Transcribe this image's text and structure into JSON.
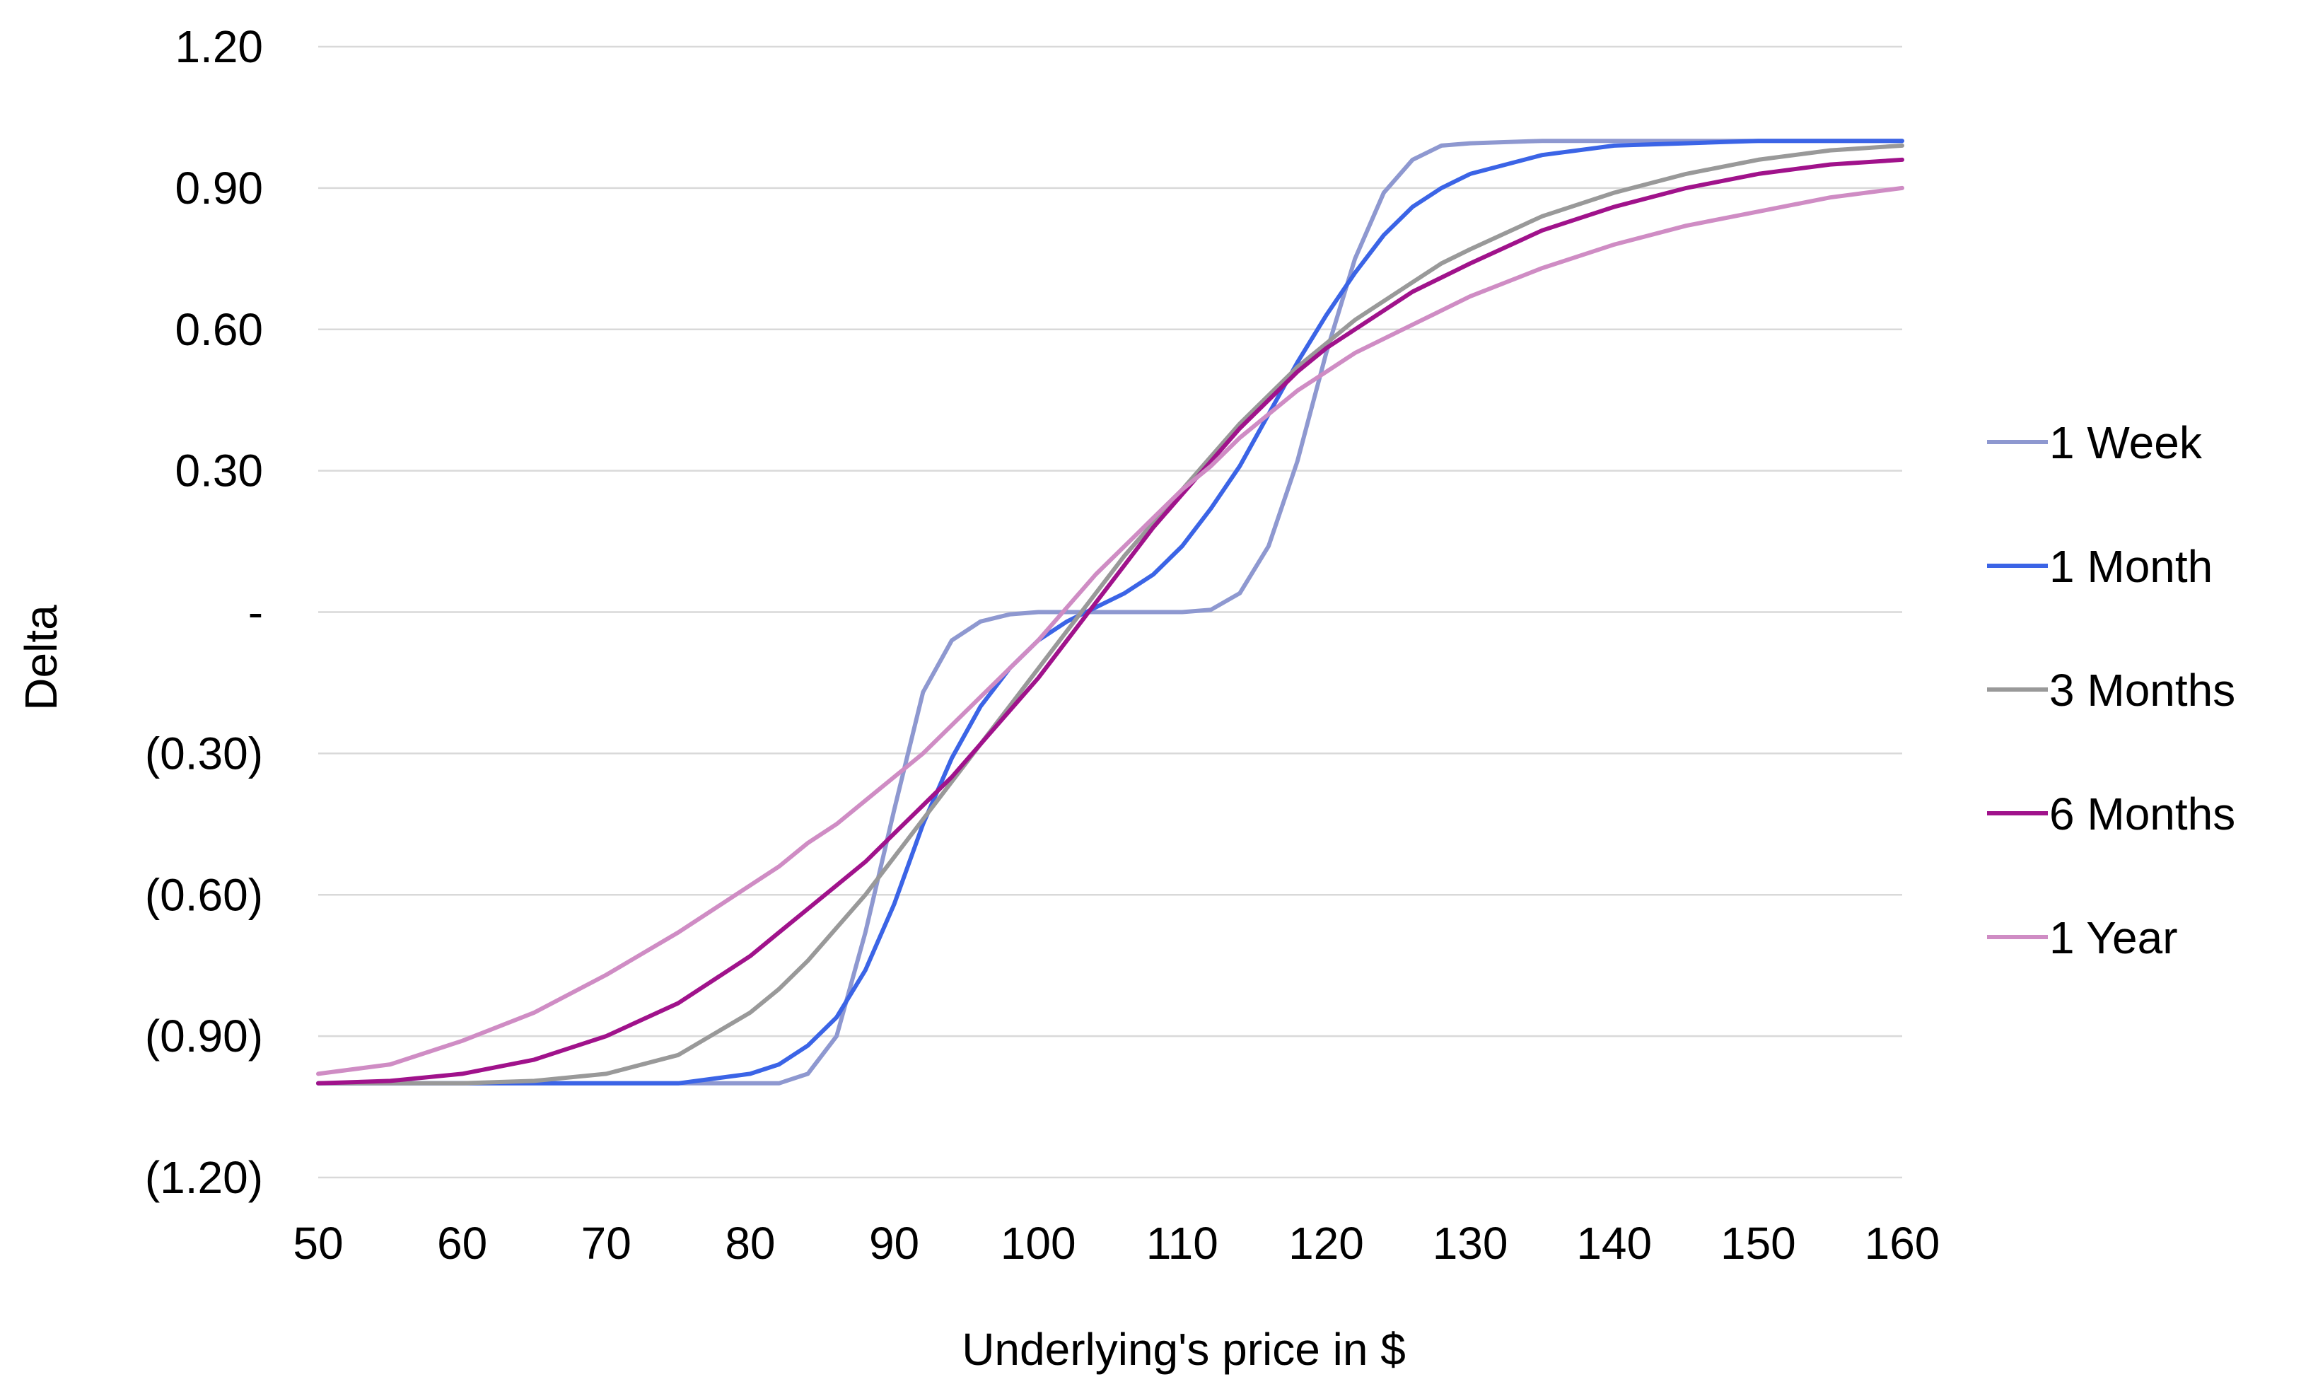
{
  "chart_data": {
    "type": "line",
    "title": "",
    "xlabel": "Underlying's price in $",
    "ylabel": "Delta",
    "xlim": [
      50,
      160
    ],
    "ylim": [
      -1.2,
      1.2
    ],
    "x_ticks": [
      {
        "value": 50,
        "label": "50"
      },
      {
        "value": 60,
        "label": "60"
      },
      {
        "value": 70,
        "label": "70"
      },
      {
        "value": 80,
        "label": "80"
      },
      {
        "value": 90,
        "label": "90"
      },
      {
        "value": 100,
        "label": "100"
      },
      {
        "value": 110,
        "label": "110"
      },
      {
        "value": 120,
        "label": "120"
      },
      {
        "value": 130,
        "label": "130"
      },
      {
        "value": 140,
        "label": "140"
      },
      {
        "value": 150,
        "label": "150"
      },
      {
        "value": 160,
        "label": "160"
      }
    ],
    "y_ticks": [
      {
        "value": 1.2,
        "label": "1.20"
      },
      {
        "value": 0.9,
        "label": "0.90"
      },
      {
        "value": 0.6,
        "label": "0.60"
      },
      {
        "value": 0.3,
        "label": "0.30"
      },
      {
        "value": 0,
        "label": "-"
      },
      {
        "value": -0.3,
        "label": "(0.30)"
      },
      {
        "value": -0.6,
        "label": "(0.60)"
      },
      {
        "value": -0.9,
        "label": "(0.90)"
      },
      {
        "value": -1.2,
        "label": "(1.20)"
      }
    ],
    "grid": true,
    "legend_position": "right",
    "x": [
      50,
      55,
      60,
      65,
      70,
      75,
      80,
      82,
      84,
      86,
      88,
      90,
      92,
      94,
      96,
      98,
      100,
      102,
      104,
      106,
      108,
      110,
      112,
      114,
      116,
      118,
      120,
      122,
      124,
      126,
      128,
      130,
      135,
      140,
      145,
      150,
      155,
      160
    ],
    "series": [
      {
        "name": "1 Week",
        "color": "#8e98d0",
        "values": [
          -1.0,
          -1.0,
          -1.0,
          -1.0,
          -1.0,
          -1.0,
          -1.0,
          -1.0,
          -0.98,
          -0.9,
          -0.68,
          -0.42,
          -0.17,
          -0.06,
          -0.02,
          -0.005,
          0.0,
          0.0,
          0.0,
          0.0,
          0.0,
          0.0,
          0.005,
          0.04,
          0.14,
          0.32,
          0.55,
          0.75,
          0.89,
          0.96,
          0.99,
          0.995,
          1.0,
          1.0,
          1.0,
          1.0,
          1.0,
          1.0
        ]
      },
      {
        "name": "1 Month",
        "color": "#3b64e6",
        "values": [
          -1.0,
          -1.0,
          -1.0,
          -1.0,
          -1.0,
          -1.0,
          -0.98,
          -0.96,
          -0.92,
          -0.86,
          -0.76,
          -0.62,
          -0.45,
          -0.31,
          -0.2,
          -0.12,
          -0.06,
          -0.02,
          0.01,
          0.04,
          0.08,
          0.14,
          0.22,
          0.31,
          0.42,
          0.53,
          0.63,
          0.72,
          0.8,
          0.86,
          0.9,
          0.93,
          0.97,
          0.99,
          0.995,
          1.0,
          1.0,
          1.0
        ]
      },
      {
        "name": "3 Months",
        "color": "#999999",
        "values": [
          -1.0,
          -1.0,
          -1.0,
          -0.995,
          -0.98,
          -0.94,
          -0.85,
          -0.8,
          -0.74,
          -0.67,
          -0.6,
          -0.52,
          -0.44,
          -0.36,
          -0.28,
          -0.2,
          -0.12,
          -0.04,
          0.04,
          0.12,
          0.19,
          0.26,
          0.33,
          0.4,
          0.46,
          0.52,
          0.57,
          0.62,
          0.66,
          0.7,
          0.74,
          0.77,
          0.84,
          0.89,
          0.93,
          0.96,
          0.98,
          0.99
        ]
      },
      {
        "name": "6 Months",
        "color": "#a0128b",
        "values": [
          -1.0,
          -0.995,
          -0.98,
          -0.95,
          -0.9,
          -0.83,
          -0.73,
          -0.68,
          -0.63,
          -0.58,
          -0.53,
          -0.47,
          -0.41,
          -0.35,
          -0.28,
          -0.21,
          -0.14,
          -0.06,
          0.02,
          0.1,
          0.18,
          0.25,
          0.32,
          0.39,
          0.45,
          0.51,
          0.56,
          0.6,
          0.64,
          0.68,
          0.71,
          0.74,
          0.81,
          0.86,
          0.9,
          0.93,
          0.95,
          0.96
        ]
      },
      {
        "name": "1 Year",
        "color": "#cf8cc4",
        "values": [
          -0.98,
          -0.96,
          -0.91,
          -0.85,
          -0.77,
          -0.68,
          -0.58,
          -0.54,
          -0.49,
          -0.45,
          -0.4,
          -0.35,
          -0.3,
          -0.24,
          -0.18,
          -0.12,
          -0.06,
          0.01,
          0.08,
          0.14,
          0.2,
          0.26,
          0.31,
          0.37,
          0.42,
          0.47,
          0.51,
          0.55,
          0.58,
          0.61,
          0.64,
          0.67,
          0.73,
          0.78,
          0.82,
          0.85,
          0.88,
          0.9
        ]
      }
    ]
  }
}
